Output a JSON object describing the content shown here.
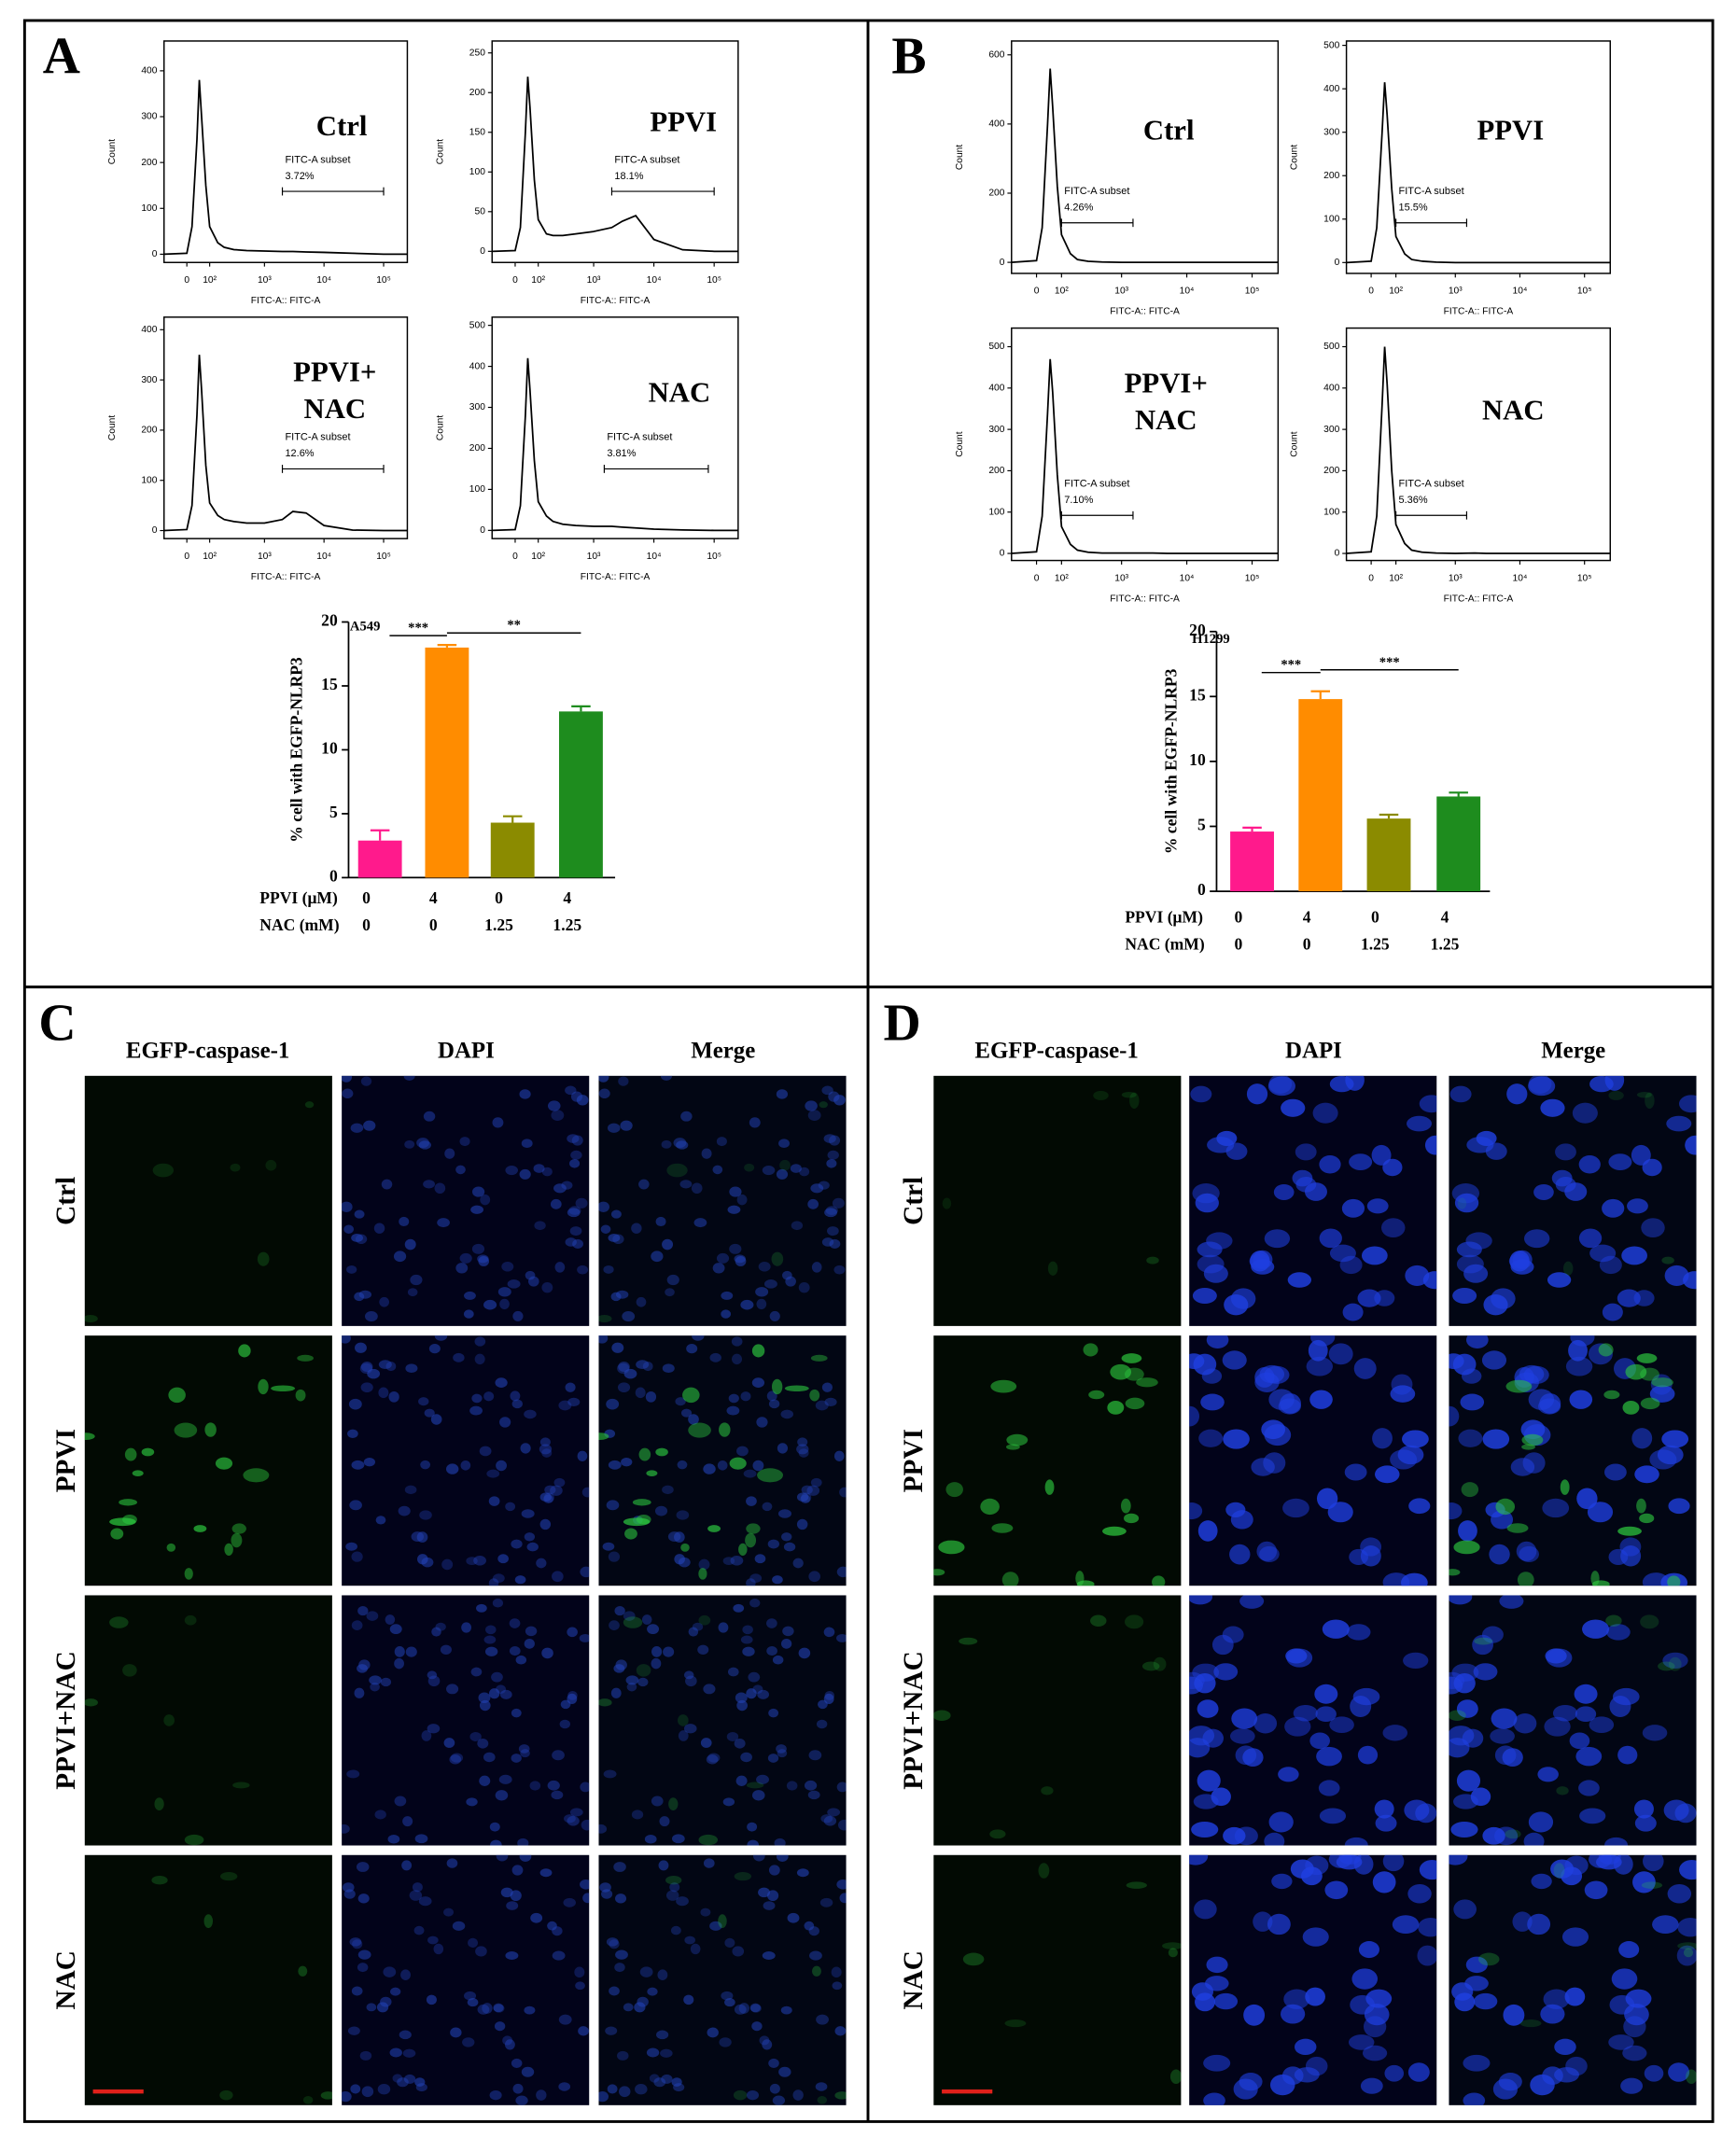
{
  "panel_labels": [
    "A",
    "B",
    "C",
    "D"
  ],
  "chart_data": [
    {
      "type": "line",
      "title": "Ctrl",
      "xlabel": "FITC-A:: FITC-A",
      "ylabel": "Count",
      "color": "#000000",
      "xscale": "asinh",
      "x": [
        -100,
        0,
        20,
        40,
        50,
        60,
        80,
        100,
        150,
        200,
        300,
        500,
        1000,
        2000,
        3000,
        5000,
        10000,
        30000,
        100000,
        250000
      ],
      "values": [
        0,
        2,
        60,
        250,
        380,
        300,
        150,
        60,
        25,
        15,
        10,
        8,
        7,
        6,
        6,
        5,
        4,
        2,
        0,
        0
      ],
      "xlim": [
        -100,
        250000
      ],
      "ylim": [
        -18,
        465
      ],
      "yticks": [
        0,
        100,
        200,
        300,
        400
      ],
      "xticks": [
        0,
        {
          "value": 100,
          "label": "10²"
        },
        {
          "value": 1000,
          "label": "10³"
        },
        {
          "value": 10000,
          "label": "10⁴"
        },
        {
          "value": 100000,
          "label": "10⁵"
        }
      ],
      "gate": {
        "label": "FITC-A subset",
        "value": 3.72,
        "value_label": "3.72%",
        "x": [
          2000,
          100000
        ]
      }
    },
    {
      "type": "line",
      "title": "PPVI",
      "xlabel": "FITC-A:: FITC-A",
      "ylabel": "Count",
      "color": "#000000",
      "xscale": "asinh",
      "x": [
        -100,
        0,
        20,
        40,
        50,
        60,
        80,
        100,
        150,
        200,
        300,
        500,
        1000,
        2000,
        3000,
        5000,
        10000,
        30000,
        100000,
        250000
      ],
      "values": [
        0,
        1,
        30,
        150,
        220,
        180,
        90,
        40,
        22,
        20,
        20,
        22,
        25,
        30,
        38,
        45,
        15,
        2,
        0,
        0
      ],
      "xlim": [
        -100,
        250000
      ],
      "ylim": [
        -14,
        265
      ],
      "yticks": [
        0,
        50,
        100,
        150,
        200,
        250
      ],
      "xticks": [
        0,
        {
          "value": 100,
          "label": "10²"
        },
        {
          "value": 1000,
          "label": "10³"
        },
        {
          "value": 10000,
          "label": "10⁴"
        },
        {
          "value": 100000,
          "label": "10⁵"
        }
      ],
      "gate": {
        "label": "FITC-A subset",
        "value": 18.1,
        "value_label": "18.1%",
        "x": [
          2000,
          100000
        ]
      }
    },
    {
      "type": "line",
      "title": "PPVI+ NAC",
      "xlabel": "FITC-A:: FITC-A",
      "ylabel": "Count",
      "color": "#000000",
      "xscale": "asinh",
      "x": [
        -100,
        0,
        20,
        40,
        50,
        60,
        80,
        100,
        150,
        200,
        300,
        500,
        1000,
        2000,
        3000,
        5000,
        10000,
        30000,
        100000,
        250000
      ],
      "values": [
        0,
        2,
        50,
        230,
        350,
        280,
        130,
        55,
        30,
        22,
        18,
        15,
        15,
        22,
        38,
        35,
        10,
        1,
        0,
        0
      ],
      "xlim": [
        -100,
        250000
      ],
      "ylim": [
        -16,
        425
      ],
      "yticks": [
        0,
        100,
        200,
        300,
        400
      ],
      "xticks": [
        0,
        {
          "value": 100,
          "label": "10²"
        },
        {
          "value": 1000,
          "label": "10³"
        },
        {
          "value": 10000,
          "label": "10⁴"
        },
        {
          "value": 100000,
          "label": "10⁵"
        }
      ],
      "gate": {
        "label": "FITC-A subset",
        "value": 12.6,
        "value_label": "12.6%",
        "x": [
          2000,
          100000
        ]
      }
    },
    {
      "type": "line",
      "title": "NAC",
      "xlabel": "FITC-A:: FITC-A",
      "ylabel": "Count",
      "color": "#000000",
      "xscale": "asinh",
      "x": [
        -100,
        0,
        20,
        40,
        50,
        60,
        80,
        100,
        150,
        200,
        300,
        500,
        1000,
        2000,
        3000,
        5000,
        10000,
        30000,
        100000,
        250000
      ],
      "values": [
        0,
        2,
        60,
        280,
        420,
        340,
        170,
        70,
        35,
        22,
        15,
        12,
        10,
        10,
        8,
        6,
        3,
        1,
        0,
        0
      ],
      "xlim": [
        -100,
        250000
      ],
      "ylim": [
        -20,
        520
      ],
      "yticks": [
        0,
        100,
        200,
        300,
        400,
        500
      ],
      "xticks": [
        0,
        {
          "value": 100,
          "label": "10²"
        },
        {
          "value": 1000,
          "label": "10³"
        },
        {
          "value": 10000,
          "label": "10⁴"
        },
        {
          "value": 100000,
          "label": "10⁵"
        }
      ],
      "gate": {
        "label": "FITC-A subset",
        "value": 3.81,
        "value_label": "3.81%",
        "x": [
          1500,
          80000
        ]
      }
    },
    {
      "type": "line",
      "title": "Ctrl",
      "xlabel": "FITC-A:: FITC-A",
      "ylabel": "Count",
      "color": "#000000",
      "xscale": "asinh",
      "x": [
        -100,
        0,
        20,
        40,
        50,
        60,
        80,
        100,
        150,
        200,
        300,
        500,
        1000,
        2000,
        3000,
        5000,
        10000,
        30000,
        100000,
        250000
      ],
      "values": [
        0,
        5,
        100,
        400,
        560,
        450,
        220,
        80,
        25,
        8,
        3,
        1,
        0,
        0,
        0,
        0,
        0,
        0,
        0,
        0
      ],
      "xlim": [
        -100,
        250000
      ],
      "ylim": [
        -32,
        640
      ],
      "yticks": [
        0,
        200,
        400,
        600
      ],
      "xticks": [
        0,
        {
          "value": 100,
          "label": "10²"
        },
        {
          "value": 1000,
          "label": "10³"
        },
        {
          "value": 10000,
          "label": "10⁴"
        },
        {
          "value": 100000,
          "label": "10⁵"
        }
      ],
      "gate": {
        "label": "FITC-A subset",
        "value": 4.26,
        "value_label": "4.26%",
        "x": [
          100,
          1500
        ]
      }
    },
    {
      "type": "line",
      "title": "PPVI",
      "xlabel": "FITC-A:: FITC-A",
      "ylabel": "Count",
      "color": "#000000",
      "xscale": "asinh",
      "x": [
        -100,
        0,
        20,
        40,
        50,
        60,
        80,
        100,
        150,
        200,
        300,
        500,
        1000,
        2000,
        3000,
        5000,
        10000,
        30000,
        100000,
        250000
      ],
      "values": [
        0,
        3,
        80,
        300,
        415,
        340,
        170,
        60,
        20,
        7,
        3,
        1,
        0,
        0,
        0,
        0,
        0,
        0,
        0,
        0
      ],
      "xlim": [
        -100,
        250000
      ],
      "ylim": [
        -25,
        510
      ],
      "yticks": [
        0,
        100,
        200,
        300,
        400,
        500
      ],
      "xticks": [
        0,
        {
          "value": 100,
          "label": "10²"
        },
        {
          "value": 1000,
          "label": "10³"
        },
        {
          "value": 10000,
          "label": "10⁴"
        },
        {
          "value": 100000,
          "label": "10⁵"
        }
      ],
      "gate": {
        "label": "FITC-A subset",
        "value": 15.5,
        "value_label": "15.5%",
        "x": [
          100,
          1500
        ]
      }
    },
    {
      "type": "line",
      "title": "PPVI+ NAC",
      "xlabel": "FITC-A:: FITC-A",
      "ylabel": "Count",
      "color": "#000000",
      "xscale": "asinh",
      "x": [
        -100,
        0,
        20,
        40,
        50,
        60,
        80,
        100,
        150,
        200,
        300,
        500,
        1000,
        2000,
        3000,
        5000,
        10000,
        30000,
        100000,
        250000
      ],
      "values": [
        0,
        4,
        90,
        340,
        470,
        390,
        190,
        65,
        22,
        8,
        3,
        1,
        1,
        1,
        1,
        0,
        0,
        0,
        0,
        0
      ],
      "xlim": [
        -100,
        250000
      ],
      "ylim": [
        -17,
        545
      ],
      "yticks": [
        0,
        100,
        200,
        300,
        400,
        500
      ],
      "xticks": [
        0,
        {
          "value": 100,
          "label": "10²"
        },
        {
          "value": 1000,
          "label": "10³"
        },
        {
          "value": 10000,
          "label": "10⁴"
        },
        {
          "value": 100000,
          "label": "10⁵"
        }
      ],
      "gate": {
        "label": "FITC-A subset",
        "value": 7.1,
        "value_label": "7.10%",
        "x": [
          100,
          1500
        ]
      }
    },
    {
      "type": "line",
      "title": "NAC",
      "xlabel": "FITC-A:: FITC-A",
      "ylabel": "Count",
      "color": "#000000",
      "xscale": "asinh",
      "x": [
        -100,
        0,
        20,
        40,
        50,
        60,
        80,
        100,
        150,
        200,
        300,
        500,
        1000,
        2000,
        3000,
        5000,
        10000,
        30000,
        100000,
        250000
      ],
      "values": [
        0,
        4,
        90,
        360,
        500,
        410,
        200,
        70,
        24,
        8,
        3,
        1,
        0,
        1,
        0,
        0,
        0,
        0,
        0,
        0
      ],
      "xlim": [
        -100,
        250000
      ],
      "ylim": [
        -17,
        545
      ],
      "yticks": [
        0,
        100,
        200,
        300,
        400,
        500
      ],
      "xticks": [
        0,
        {
          "value": 100,
          "label": "10²"
        },
        {
          "value": 1000,
          "label": "10³"
        },
        {
          "value": 10000,
          "label": "10⁴"
        },
        {
          "value": 100000,
          "label": "10⁵"
        }
      ],
      "gate": {
        "label": "FITC-A subset",
        "value": 5.36,
        "value_label": "5.36%",
        "x": [
          100,
          1500
        ]
      }
    },
    {
      "type": "bar",
      "title": "A549",
      "ylabel": "% cell with EGFP-NLRP3",
      "values": [
        2.9,
        18,
        4.3,
        13
      ],
      "errors": [
        0.8,
        0.2,
        0.5,
        0.4
      ],
      "colors": [
        "#ff1a8c",
        "#ff8c00",
        "#8b8b00",
        "#1e8c1e"
      ],
      "ylim": [
        0,
        20
      ],
      "yticks": [
        0,
        5,
        10,
        15,
        20
      ],
      "category_rows": [
        {
          "label": "PPVI (μM)",
          "values": [
            0,
            4,
            0,
            4
          ]
        },
        {
          "label": "NAC (mM)",
          "values": [
            0,
            0,
            1.25,
            1.25
          ]
        }
      ],
      "annotations": [
        {
          "text": "***",
          "from": 0,
          "to": 1
        },
        {
          "text": "**",
          "from": 1,
          "to": 3
        }
      ]
    },
    {
      "type": "bar",
      "title": "H1299",
      "ylabel": "% cell with EGFP-NLRP3",
      "values": [
        4.6,
        14.8,
        5.6,
        7.3
      ],
      "errors": [
        0.3,
        0.6,
        0.3,
        0.3
      ],
      "colors": [
        "#ff1a8c",
        "#ff8c00",
        "#8b8b00",
        "#1e8c1e"
      ],
      "ylim": [
        0,
        20
      ],
      "yticks": [
        0,
        5,
        10,
        15,
        20
      ],
      "category_rows": [
        {
          "label": "PPVI (μM)",
          "values": [
            0,
            4,
            0,
            4
          ]
        },
        {
          "label": "NAC (mM)",
          "values": [
            0,
            0,
            1.25,
            1.25
          ]
        }
      ],
      "annotations": [
        {
          "text": "***",
          "from": 0,
          "to": 1
        },
        {
          "text": "***",
          "from": 1,
          "to": 3
        }
      ]
    }
  ],
  "micrographs": [
    {
      "columns": [
        "EGFP-caspase-1",
        "DAPI",
        "Merge"
      ],
      "rows": [
        "Ctrl",
        "PPVI",
        "PPVI+NAC",
        "NAC"
      ]
    },
    {
      "columns": [
        "EGFP-caspase-1",
        "DAPI",
        "Merge"
      ],
      "rows": [
        "Ctrl",
        "PPVI",
        "PPVI+NAC",
        "NAC"
      ]
    }
  ]
}
